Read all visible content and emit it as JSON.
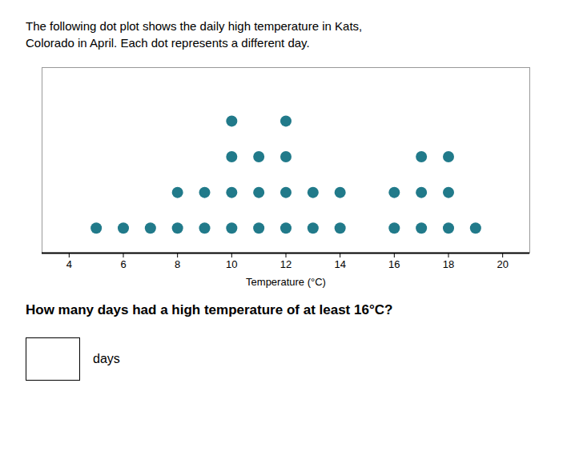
{
  "chart_data": {
    "type": "dot_plot",
    "title": "The following dot plot shows the daily high temperature in Kats,",
    "subtitle": "Colorado in April. Each dot represents a different day.",
    "x": [
      5,
      6,
      7,
      8,
      9,
      10,
      11,
      12,
      13,
      14,
      16,
      17,
      18,
      19
    ],
    "values": [
      1,
      1,
      1,
      2,
      2,
      4,
      3,
      4,
      2,
      2,
      2,
      3,
      3,
      1
    ],
    "color": "#217a8a",
    "xlabel": "Temperature (°C)",
    "xlim": [
      3,
      21
    ],
    "xticks": [
      4,
      6,
      8,
      10,
      12,
      14,
      16,
      18,
      20
    ],
    "ylim": [
      0.3,
      5.5
    ],
    "tick_labels": "x",
    "grid": false,
    "annotations": [
      "How many days had a high temperature of at least 16°C?",
      "days"
    ]
  }
}
